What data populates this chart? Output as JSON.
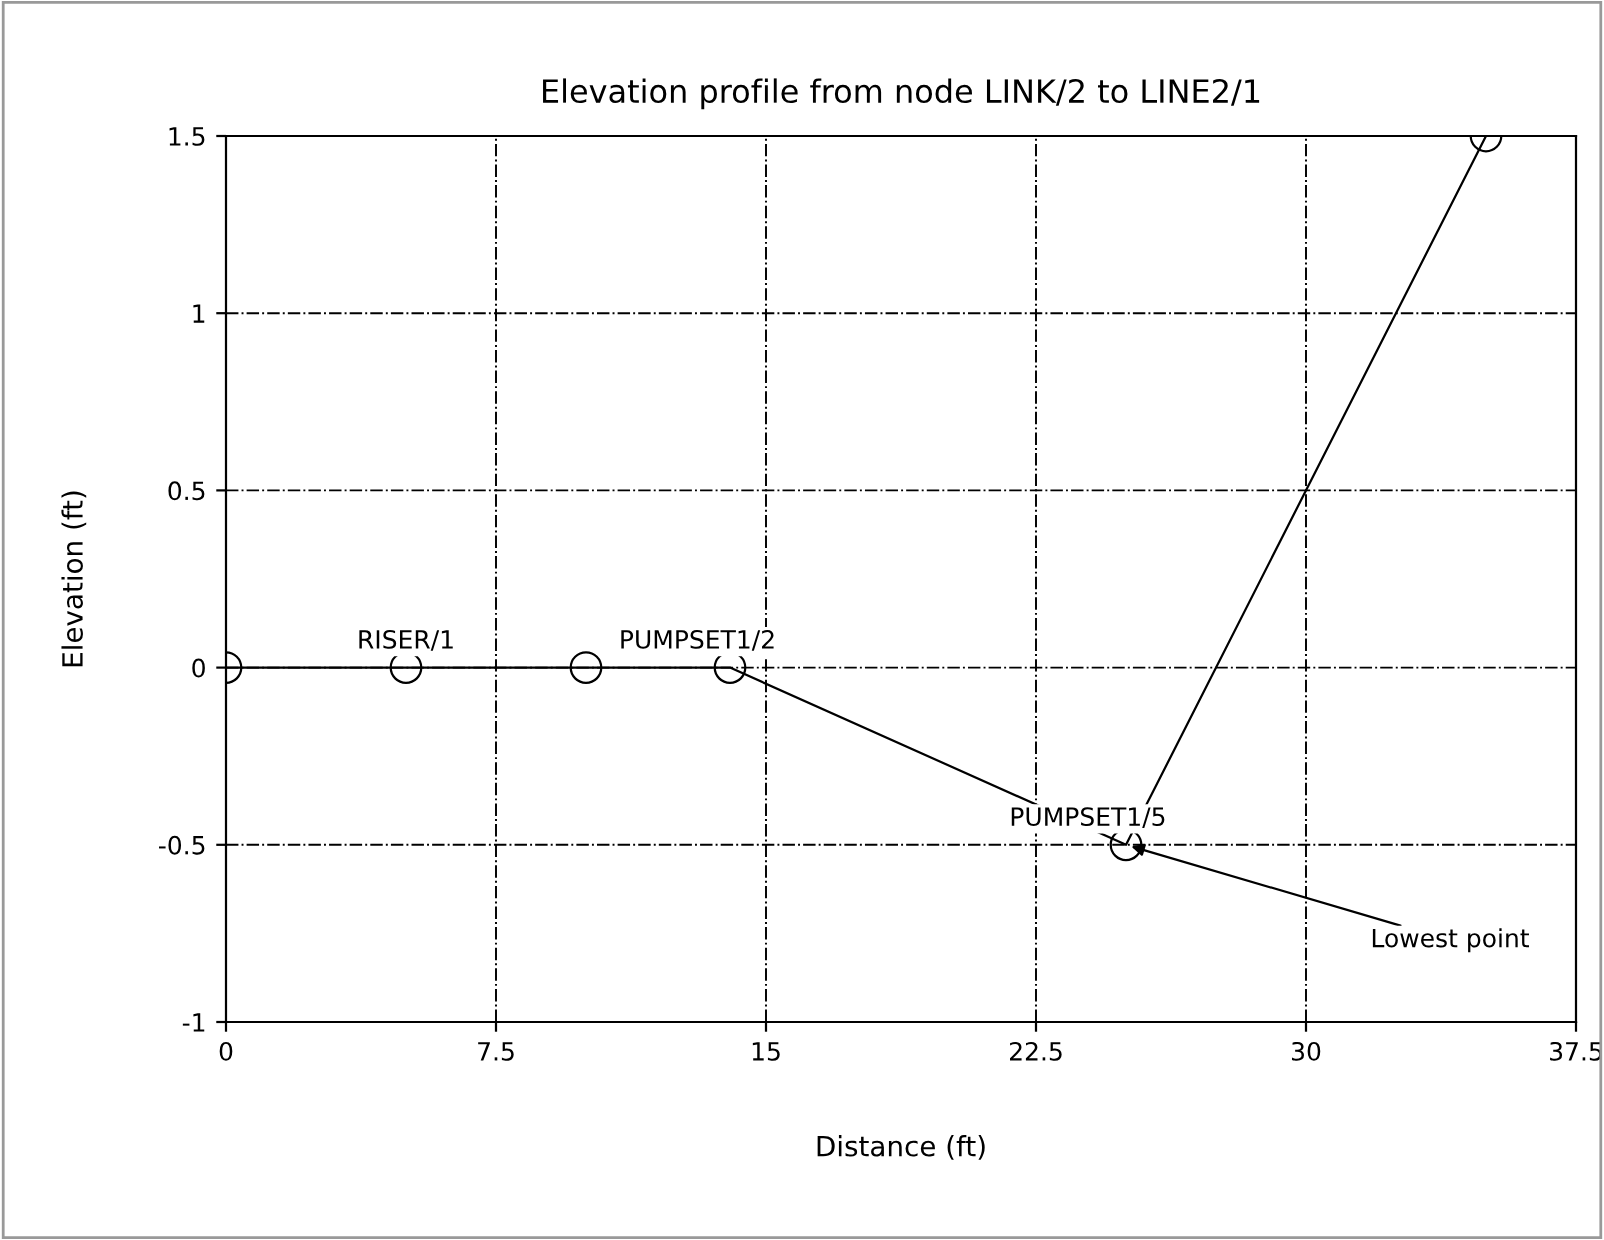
{
  "chart_data": {
    "type": "line",
    "title": "Elevation profile from node LINK/2 to LINE2/1",
    "xlabel": "Distance (ft)",
    "ylabel": "Elevation (ft)",
    "x": [
      0,
      5,
      10,
      14,
      25,
      35
    ],
    "series": [
      {
        "color": "#000000",
        "values": [
          0,
          0,
          0,
          0,
          -0.5,
          1.5
        ]
      }
    ],
    "xlim": [
      0,
      37.5
    ],
    "xticks": [
      0,
      7.5,
      15,
      22.5,
      30,
      37.5
    ],
    "ylim": [
      -1,
      1.5
    ],
    "yticks": [
      -1,
      -0.5,
      0,
      0.5,
      1,
      1.5
    ],
    "grid": true,
    "marker": "circle",
    "line_style": "solid",
    "legend": false,
    "annotations": [
      {
        "text": "RISER/1",
        "x": 5,
        "y": 0
      },
      {
        "text": "PUMPSET1/2",
        "x": 14,
        "y": 0
      },
      {
        "text": "PUMPSET1/5",
        "x": 25,
        "y": -0.5
      },
      {
        "text": "Lowest point",
        "x": 25,
        "y": -0.5
      }
    ]
  }
}
